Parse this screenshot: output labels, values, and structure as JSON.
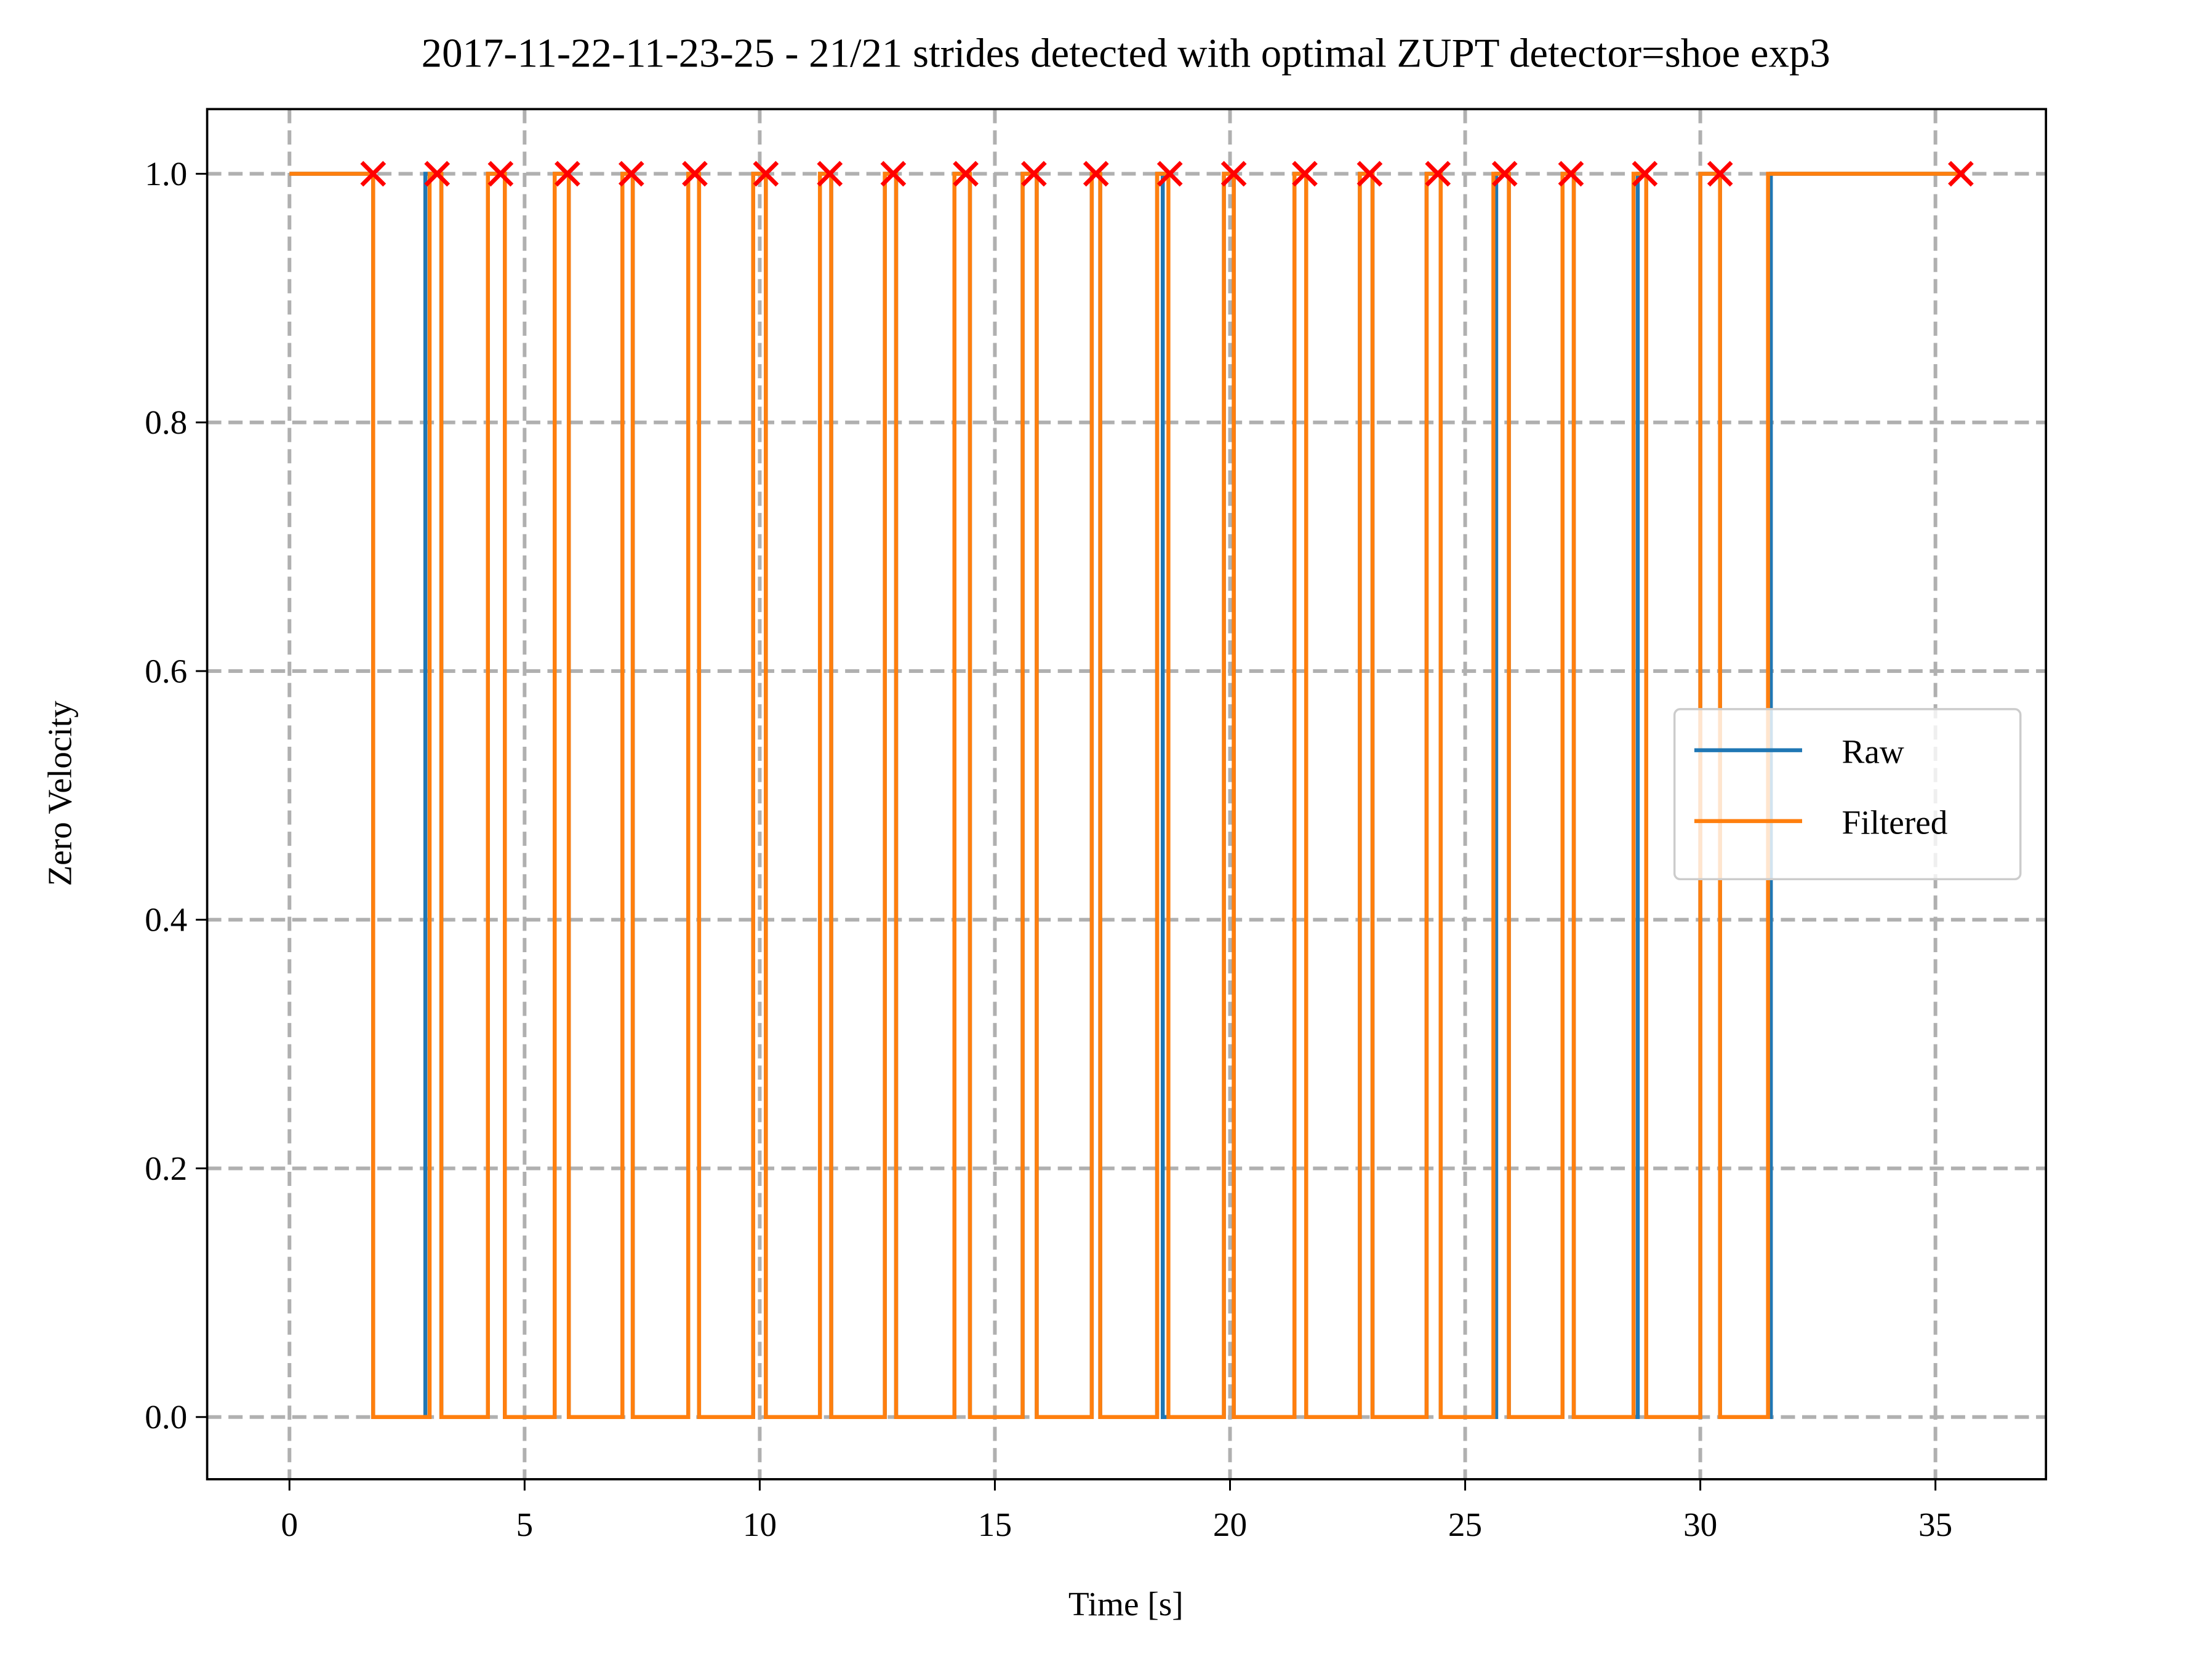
{
  "chart_data": {
    "type": "line",
    "title": "2017-11-22-11-23-25 - 21/21 strides detected with optimal ZUPT detector=shoe exp3",
    "xlabel": "Time [s]",
    "ylabel": "Zero Velocity",
    "xlim": [
      -1.75,
      37.35
    ],
    "ylim": [
      -0.05,
      1.052
    ],
    "xticks": [
      0,
      5,
      10,
      15,
      20,
      25,
      30,
      35
    ],
    "yticks": [
      {
        "value": 0,
        "label": "0.0"
      },
      0.2,
      0.4,
      0.6,
      0.8,
      {
        "value": 1,
        "label": "1.0"
      }
    ],
    "grid": true,
    "legend": "center right",
    "series": [
      {
        "name": "Raw",
        "color": "#1f77b4",
        "x": [
          0,
          1.78,
          1.78,
          2.89,
          2.89,
          3.23,
          3.23,
          4.22,
          4.22,
          4.58,
          4.58,
          5.64,
          5.64,
          5.94,
          5.94,
          7.08,
          7.08,
          7.3,
          7.3,
          8.48,
          8.48,
          8.71,
          8.71,
          9.86,
          9.86,
          10.13,
          10.13,
          11.28,
          11.28,
          11.52,
          11.52,
          12.66,
          12.66,
          12.9,
          12.9,
          14.14,
          14.14,
          14.47,
          14.47,
          15.59,
          15.59,
          15.89,
          15.89,
          17.06,
          17.06,
          17.24,
          17.24,
          18.45,
          18.45,
          18.57,
          18.57,
          19.87,
          19.87,
          20.08,
          20.08,
          21.37,
          21.37,
          21.62,
          21.62,
          22.76,
          22.76,
          23.03,
          23.03,
          24.18,
          24.18,
          24.48,
          24.48,
          25.66,
          25.66,
          25.93,
          25.93,
          27.07,
          27.07,
          27.31,
          27.31,
          28.67,
          28.67,
          28.85,
          28.85,
          30.0,
          30.0,
          30.42,
          30.42,
          31.5,
          31.5,
          35.54
        ],
        "values": [
          1,
          1,
          0,
          0,
          1,
          1,
          0,
          0,
          1,
          1,
          0,
          0,
          1,
          1,
          0,
          0,
          1,
          1,
          0,
          0,
          1,
          1,
          0,
          0,
          1,
          1,
          0,
          0,
          1,
          1,
          0,
          0,
          1,
          1,
          0,
          0,
          1,
          1,
          0,
          0,
          1,
          1,
          0,
          0,
          1,
          1,
          0,
          0,
          1,
          1,
          0,
          0,
          1,
          1,
          0,
          0,
          1,
          1,
          0,
          0,
          1,
          1,
          0,
          0,
          1,
          1,
          0,
          0,
          1,
          1,
          0,
          0,
          1,
          1,
          0,
          0,
          1,
          1,
          0,
          0,
          1,
          1,
          0,
          0,
          1,
          1
        ]
      },
      {
        "name": "Filtered",
        "color": "#ff7f0e",
        "x": [
          0,
          1.78,
          1.78,
          2.98,
          2.98,
          3.23,
          3.23,
          4.22,
          4.22,
          4.58,
          4.58,
          5.64,
          5.64,
          5.94,
          5.94,
          7.08,
          7.08,
          7.3,
          7.3,
          8.48,
          8.48,
          8.71,
          8.71,
          9.86,
          9.86,
          10.13,
          10.13,
          11.28,
          11.28,
          11.52,
          11.52,
          12.66,
          12.66,
          12.9,
          12.9,
          14.14,
          14.14,
          14.47,
          14.47,
          15.59,
          15.59,
          15.89,
          15.89,
          17.06,
          17.06,
          17.24,
          17.24,
          18.45,
          18.45,
          18.69,
          18.69,
          19.87,
          19.87,
          20.08,
          20.08,
          21.37,
          21.37,
          21.62,
          21.62,
          22.76,
          22.76,
          23.03,
          23.03,
          24.18,
          24.18,
          24.48,
          24.48,
          25.6,
          25.6,
          25.93,
          25.93,
          27.07,
          27.07,
          27.31,
          27.31,
          28.58,
          28.58,
          28.85,
          28.85,
          30.0,
          30.0,
          30.42,
          30.42,
          31.44,
          31.44,
          35.54
        ],
        "values": [
          1,
          1,
          0,
          0,
          1,
          1,
          0,
          0,
          1,
          1,
          0,
          0,
          1,
          1,
          0,
          0,
          1,
          1,
          0,
          0,
          1,
          1,
          0,
          0,
          1,
          1,
          0,
          0,
          1,
          1,
          0,
          0,
          1,
          1,
          0,
          0,
          1,
          1,
          0,
          0,
          1,
          1,
          0,
          0,
          1,
          1,
          0,
          0,
          1,
          1,
          0,
          0,
          1,
          1,
          0,
          0,
          1,
          1,
          0,
          0,
          1,
          1,
          0,
          0,
          1,
          1,
          0,
          0,
          1,
          1,
          0,
          0,
          1,
          1,
          0,
          0,
          1,
          1,
          0,
          0,
          1,
          1,
          0,
          0,
          1,
          1
        ]
      },
      {
        "type": "scatter",
        "marker": "x",
        "color": "#ff0000",
        "x": [
          1.78,
          3.14,
          4.49,
          5.91,
          7.27,
          8.62,
          10.13,
          11.49,
          12.84,
          14.38,
          15.83,
          17.15,
          18.72,
          20.08,
          21.59,
          22.97,
          24.42,
          25.84,
          27.25,
          28.82,
          30.42,
          35.54
        ],
        "values": [
          1,
          1,
          1,
          1,
          1,
          1,
          1,
          1,
          1,
          1,
          1,
          1,
          1,
          1,
          1,
          1,
          1,
          1,
          1,
          1,
          1,
          1
        ]
      }
    ]
  }
}
